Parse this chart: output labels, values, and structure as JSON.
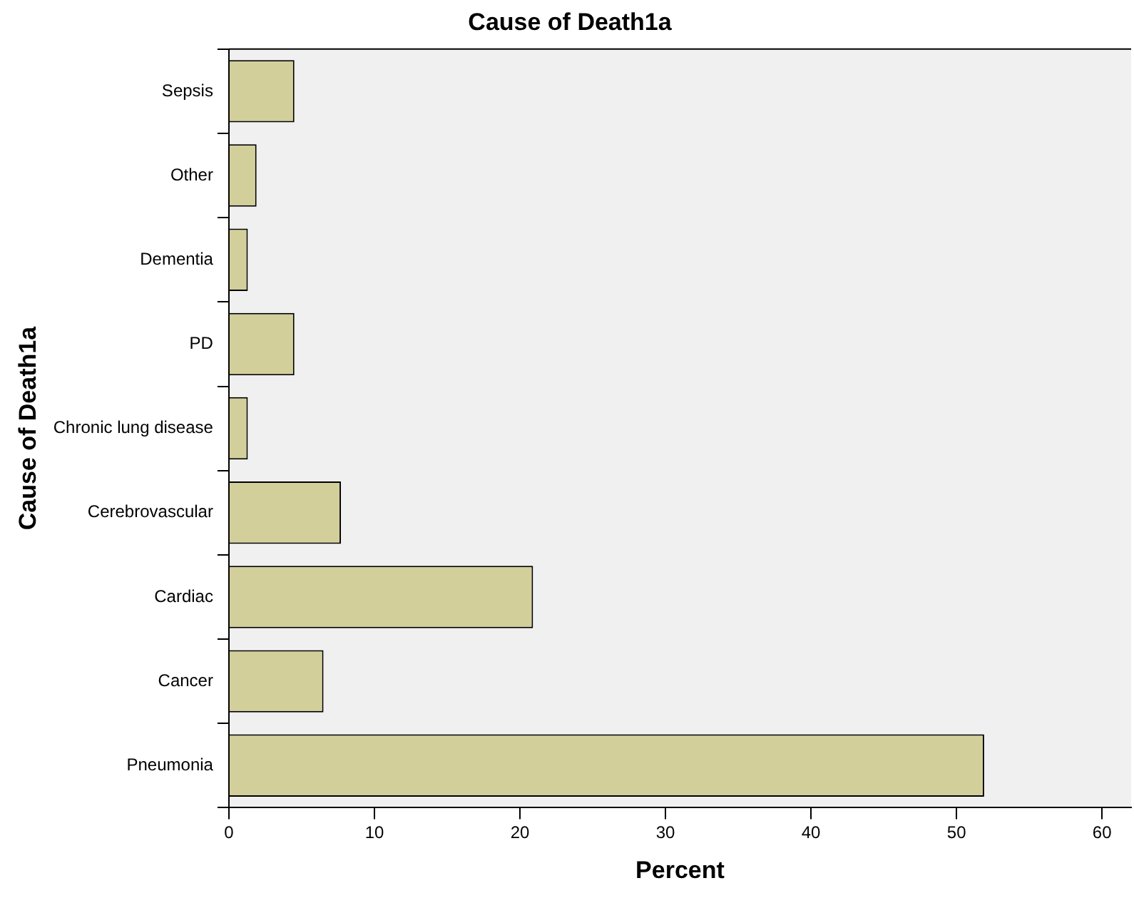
{
  "chart_data": {
    "type": "bar",
    "orientation": "horizontal",
    "title": "Cause of Death1a",
    "xlabel": "Percent",
    "ylabel": "Cause of Death1a",
    "categories": [
      "Sepsis",
      "Other",
      "Dementia",
      "PD",
      "Chronic lung disease",
      "Cerebrovascular",
      "Cardiac",
      "Cancer",
      "Pneumonia"
    ],
    "values": [
      4.5,
      1.9,
      1.3,
      4.5,
      1.3,
      7.7,
      20.9,
      6.5,
      51.9
    ],
    "color": "#d3cf9a",
    "xlim": [
      0,
      62
    ],
    "xticks": [
      0,
      10,
      20,
      30,
      40,
      50,
      60
    ],
    "grid": false,
    "legend": false
  }
}
